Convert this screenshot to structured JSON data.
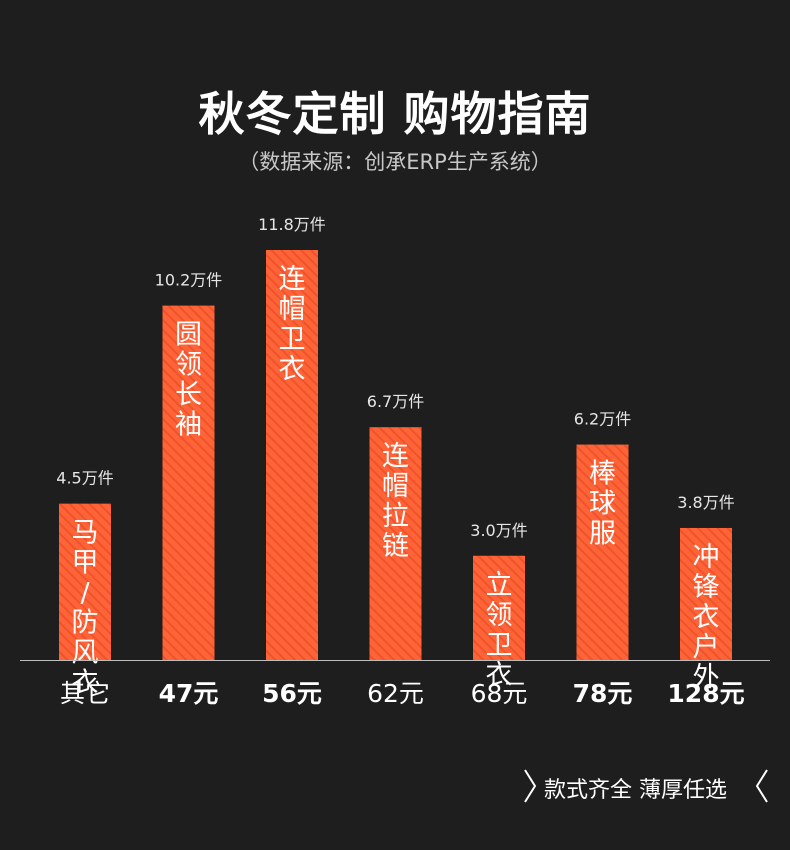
{
  "header": {
    "title": "秋冬定制 购物指南",
    "subtitle": "（数据来源：创承ERP生产系统）"
  },
  "chart_data": {
    "type": "bar",
    "categories": [
      "其它",
      "47元",
      "56元",
      "62元",
      "68元",
      "78元",
      "128元"
    ],
    "values": [
      4.5,
      10.2,
      11.8,
      6.7,
      3.0,
      6.2,
      3.8
    ],
    "value_labels": [
      "4.5万件",
      "10.2万件",
      "11.8万件",
      "6.7万件",
      "3.0万件",
      "6.2万件",
      "3.8万件"
    ],
    "bar_labels": [
      "马甲/防风衣",
      "圆领长袖",
      "连帽卫衣",
      "连帽拉链",
      "立领卫衣",
      "棒球服",
      "冲锋衣户外"
    ],
    "bold_categories": [
      false,
      true,
      true,
      false,
      false,
      true,
      true
    ],
    "ylim": [
      0,
      12
    ],
    "colors": {
      "bar": "#ff6438",
      "stripe": "#f0532a",
      "baseline": "#bdbdbd"
    }
  },
  "footer": {
    "text": "款式齐全 薄厚任选"
  }
}
